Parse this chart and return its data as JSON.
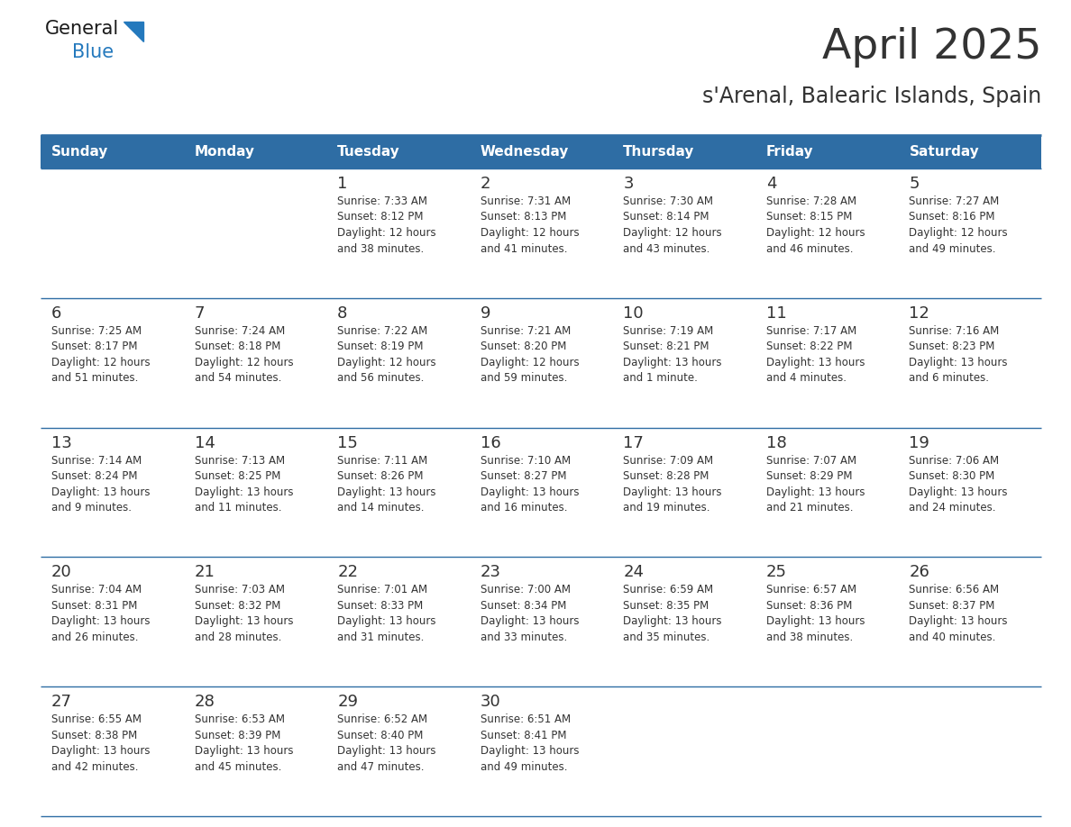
{
  "title": "April 2025",
  "subtitle": "s'Arenal, Balearic Islands, Spain",
  "header_bg_color": "#2E6DA4",
  "header_text_color": "#FFFFFF",
  "cell_bg_color": "#FFFFFF",
  "text_color": "#333333",
  "line_color": "#2E6DA4",
  "days_of_week": [
    "Sunday",
    "Monday",
    "Tuesday",
    "Wednesday",
    "Thursday",
    "Friday",
    "Saturday"
  ],
  "weeks": [
    [
      {
        "day": "",
        "info": ""
      },
      {
        "day": "",
        "info": ""
      },
      {
        "day": "1",
        "info": "Sunrise: 7:33 AM\nSunset: 8:12 PM\nDaylight: 12 hours\nand 38 minutes."
      },
      {
        "day": "2",
        "info": "Sunrise: 7:31 AM\nSunset: 8:13 PM\nDaylight: 12 hours\nand 41 minutes."
      },
      {
        "day": "3",
        "info": "Sunrise: 7:30 AM\nSunset: 8:14 PM\nDaylight: 12 hours\nand 43 minutes."
      },
      {
        "day": "4",
        "info": "Sunrise: 7:28 AM\nSunset: 8:15 PM\nDaylight: 12 hours\nand 46 minutes."
      },
      {
        "day": "5",
        "info": "Sunrise: 7:27 AM\nSunset: 8:16 PM\nDaylight: 12 hours\nand 49 minutes."
      }
    ],
    [
      {
        "day": "6",
        "info": "Sunrise: 7:25 AM\nSunset: 8:17 PM\nDaylight: 12 hours\nand 51 minutes."
      },
      {
        "day": "7",
        "info": "Sunrise: 7:24 AM\nSunset: 8:18 PM\nDaylight: 12 hours\nand 54 minutes."
      },
      {
        "day": "8",
        "info": "Sunrise: 7:22 AM\nSunset: 8:19 PM\nDaylight: 12 hours\nand 56 minutes."
      },
      {
        "day": "9",
        "info": "Sunrise: 7:21 AM\nSunset: 8:20 PM\nDaylight: 12 hours\nand 59 minutes."
      },
      {
        "day": "10",
        "info": "Sunrise: 7:19 AM\nSunset: 8:21 PM\nDaylight: 13 hours\nand 1 minute."
      },
      {
        "day": "11",
        "info": "Sunrise: 7:17 AM\nSunset: 8:22 PM\nDaylight: 13 hours\nand 4 minutes."
      },
      {
        "day": "12",
        "info": "Sunrise: 7:16 AM\nSunset: 8:23 PM\nDaylight: 13 hours\nand 6 minutes."
      }
    ],
    [
      {
        "day": "13",
        "info": "Sunrise: 7:14 AM\nSunset: 8:24 PM\nDaylight: 13 hours\nand 9 minutes."
      },
      {
        "day": "14",
        "info": "Sunrise: 7:13 AM\nSunset: 8:25 PM\nDaylight: 13 hours\nand 11 minutes."
      },
      {
        "day": "15",
        "info": "Sunrise: 7:11 AM\nSunset: 8:26 PM\nDaylight: 13 hours\nand 14 minutes."
      },
      {
        "day": "16",
        "info": "Sunrise: 7:10 AM\nSunset: 8:27 PM\nDaylight: 13 hours\nand 16 minutes."
      },
      {
        "day": "17",
        "info": "Sunrise: 7:09 AM\nSunset: 8:28 PM\nDaylight: 13 hours\nand 19 minutes."
      },
      {
        "day": "18",
        "info": "Sunrise: 7:07 AM\nSunset: 8:29 PM\nDaylight: 13 hours\nand 21 minutes."
      },
      {
        "day": "19",
        "info": "Sunrise: 7:06 AM\nSunset: 8:30 PM\nDaylight: 13 hours\nand 24 minutes."
      }
    ],
    [
      {
        "day": "20",
        "info": "Sunrise: 7:04 AM\nSunset: 8:31 PM\nDaylight: 13 hours\nand 26 minutes."
      },
      {
        "day": "21",
        "info": "Sunrise: 7:03 AM\nSunset: 8:32 PM\nDaylight: 13 hours\nand 28 minutes."
      },
      {
        "day": "22",
        "info": "Sunrise: 7:01 AM\nSunset: 8:33 PM\nDaylight: 13 hours\nand 31 minutes."
      },
      {
        "day": "23",
        "info": "Sunrise: 7:00 AM\nSunset: 8:34 PM\nDaylight: 13 hours\nand 33 minutes."
      },
      {
        "day": "24",
        "info": "Sunrise: 6:59 AM\nSunset: 8:35 PM\nDaylight: 13 hours\nand 35 minutes."
      },
      {
        "day": "25",
        "info": "Sunrise: 6:57 AM\nSunset: 8:36 PM\nDaylight: 13 hours\nand 38 minutes."
      },
      {
        "day": "26",
        "info": "Sunrise: 6:56 AM\nSunset: 8:37 PM\nDaylight: 13 hours\nand 40 minutes."
      }
    ],
    [
      {
        "day": "27",
        "info": "Sunrise: 6:55 AM\nSunset: 8:38 PM\nDaylight: 13 hours\nand 42 minutes."
      },
      {
        "day": "28",
        "info": "Sunrise: 6:53 AM\nSunset: 8:39 PM\nDaylight: 13 hours\nand 45 minutes."
      },
      {
        "day": "29",
        "info": "Sunrise: 6:52 AM\nSunset: 8:40 PM\nDaylight: 13 hours\nand 47 minutes."
      },
      {
        "day": "30",
        "info": "Sunrise: 6:51 AM\nSunset: 8:41 PM\nDaylight: 13 hours\nand 49 minutes."
      },
      {
        "day": "",
        "info": ""
      },
      {
        "day": "",
        "info": ""
      },
      {
        "day": "",
        "info": ""
      }
    ]
  ],
  "logo_color_general": "#1a1a1a",
  "logo_color_blue": "#2479BD",
  "logo_triangle_color": "#2479BD",
  "title_fontsize": 34,
  "subtitle_fontsize": 17,
  "header_fontsize": 11,
  "day_num_fontsize": 13,
  "info_fontsize": 8.5
}
